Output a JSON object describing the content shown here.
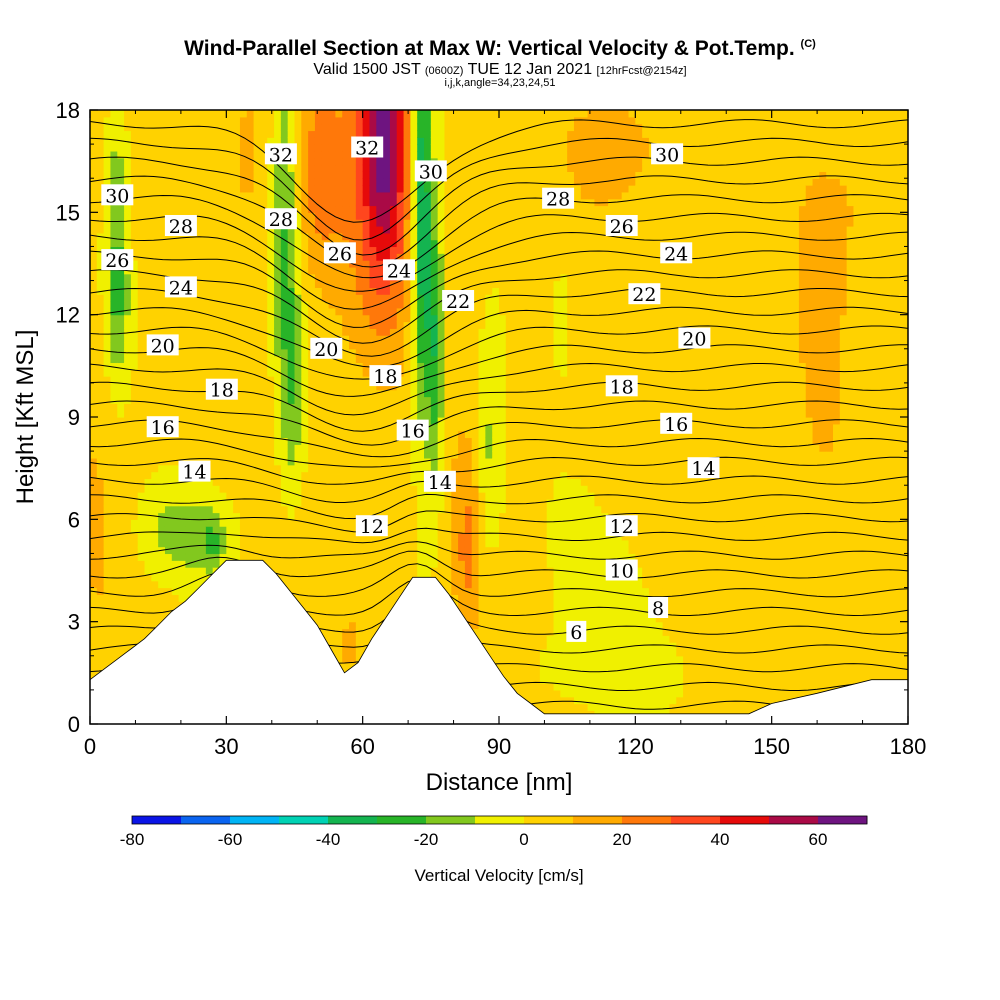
{
  "title": {
    "main": "Wind-Parallel Section at Max W: Vertical Velocity & Pot.Temp.",
    "tag": "(C)",
    "valid_prefix": "Valid 1500 JST",
    "valid_utc": "(0600Z)",
    "valid_date": "TUE 12 Jan 2021",
    "forecast": "[12hrFcst@2154z]",
    "indices": "i,j,k,angle=34,23,24,51"
  },
  "chart_data": {
    "type": "heatmap",
    "xlabel": "Distance [nm]",
    "ylabel": "Height [Kft MSL]",
    "xlim": [
      0,
      180
    ],
    "ylim": [
      0,
      18
    ],
    "x_ticks": [
      "0",
      "30",
      "60",
      "90",
      "120",
      "150",
      "180"
    ],
    "y_ticks": [
      "0",
      "3",
      "6",
      "9",
      "12",
      "15",
      "18"
    ],
    "colorbar": {
      "title": "Vertical Velocity [cm/s]",
      "tick_labels": [
        "-80",
        "-60",
        "-40",
        "-20",
        "0",
        "20",
        "40",
        "60"
      ],
      "range": [
        -80,
        70
      ],
      "step": 10,
      "colors": [
        "#0a14e6",
        "#0a64f0",
        "#00b4f5",
        "#00d2b4",
        "#14b450",
        "#28b428",
        "#82c81e",
        "#f0f000",
        "#ffd200",
        "#ffaa00",
        "#ff780a",
        "#ff461e",
        "#e60a0a",
        "#aa0a46",
        "#6e1480"
      ]
    },
    "contour_field": "Potential Temperature",
    "contour_labels": [
      {
        "text": "32",
        "x": 42,
        "y": 16.7
      },
      {
        "text": "32",
        "x": 61,
        "y": 16.9
      },
      {
        "text": "30",
        "x": 75,
        "y": 16.2
      },
      {
        "text": "30",
        "x": 127,
        "y": 16.7
      },
      {
        "text": "30",
        "x": 6,
        "y": 15.5
      },
      {
        "text": "28",
        "x": 20,
        "y": 14.6
      },
      {
        "text": "28",
        "x": 42,
        "y": 14.8
      },
      {
        "text": "28",
        "x": 103,
        "y": 15.4
      },
      {
        "text": "26",
        "x": 6,
        "y": 13.6
      },
      {
        "text": "26",
        "x": 55,
        "y": 13.8
      },
      {
        "text": "26",
        "x": 117,
        "y": 14.6
      },
      {
        "text": "24",
        "x": 20,
        "y": 12.8
      },
      {
        "text": "24",
        "x": 68,
        "y": 13.3
      },
      {
        "text": "24",
        "x": 129,
        "y": 13.8
      },
      {
        "text": "22",
        "x": 81,
        "y": 12.4
      },
      {
        "text": "22",
        "x": 122,
        "y": 12.6
      },
      {
        "text": "20",
        "x": 16,
        "y": 11.1
      },
      {
        "text": "20",
        "x": 52,
        "y": 11.0
      },
      {
        "text": "20",
        "x": 133,
        "y": 11.3
      },
      {
        "text": "18",
        "x": 29,
        "y": 9.8
      },
      {
        "text": "18",
        "x": 65,
        "y": 10.2
      },
      {
        "text": "18",
        "x": 117,
        "y": 9.9
      },
      {
        "text": "16",
        "x": 16,
        "y": 8.7
      },
      {
        "text": "16",
        "x": 71,
        "y": 8.6
      },
      {
        "text": "16",
        "x": 129,
        "y": 8.8
      },
      {
        "text": "14",
        "x": 23,
        "y": 7.4
      },
      {
        "text": "14",
        "x": 77,
        "y": 7.1
      },
      {
        "text": "14",
        "x": 135,
        "y": 7.5
      },
      {
        "text": "12",
        "x": 62,
        "y": 5.8
      },
      {
        "text": "12",
        "x": 117,
        "y": 5.8
      },
      {
        "text": "10",
        "x": 117,
        "y": 4.5
      },
      {
        "text": "8",
        "x": 125,
        "y": 3.4
      },
      {
        "text": "6",
        "x": 107,
        "y": 2.7
      }
    ],
    "terrain": [
      {
        "x": 0,
        "z": 1.3
      },
      {
        "x": 3,
        "z": 1.6
      },
      {
        "x": 6,
        "z": 1.9
      },
      {
        "x": 9,
        "z": 2.2
      },
      {
        "x": 12,
        "z": 2.5
      },
      {
        "x": 15,
        "z": 2.9
      },
      {
        "x": 18,
        "z": 3.3
      },
      {
        "x": 21,
        "z": 3.6
      },
      {
        "x": 24,
        "z": 4.0
      },
      {
        "x": 27,
        "z": 4.4
      },
      {
        "x": 30,
        "z": 4.8
      },
      {
        "x": 38,
        "z": 4.8
      },
      {
        "x": 41,
        "z": 4.4
      },
      {
        "x": 44,
        "z": 3.9
      },
      {
        "x": 47,
        "z": 3.4
      },
      {
        "x": 50,
        "z": 2.9
      },
      {
        "x": 53,
        "z": 2.2
      },
      {
        "x": 56,
        "z": 1.5
      },
      {
        "x": 59,
        "z": 1.8
      },
      {
        "x": 62,
        "z": 2.5
      },
      {
        "x": 65,
        "z": 3.1
      },
      {
        "x": 68,
        "z": 3.7
      },
      {
        "x": 71,
        "z": 4.3
      },
      {
        "x": 76,
        "z": 4.3
      },
      {
        "x": 79,
        "z": 3.8
      },
      {
        "x": 82,
        "z": 3.2
      },
      {
        "x": 85,
        "z": 2.6
      },
      {
        "x": 88,
        "z": 2.0
      },
      {
        "x": 91,
        "z": 1.4
      },
      {
        "x": 94,
        "z": 0.9
      },
      {
        "x": 97,
        "z": 0.6
      },
      {
        "x": 100,
        "z": 0.3
      },
      {
        "x": 145,
        "z": 0.3
      },
      {
        "x": 150,
        "z": 0.6
      },
      {
        "x": 160,
        "z": 0.9
      },
      {
        "x": 172,
        "z": 1.3
      },
      {
        "x": 180,
        "z": 1.3
      }
    ]
  }
}
